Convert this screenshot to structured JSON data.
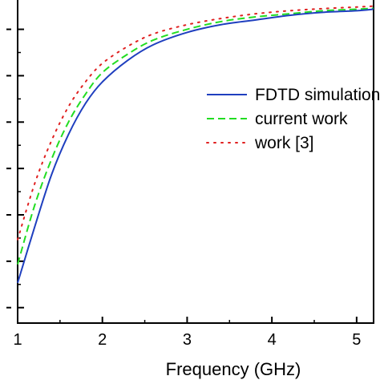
{
  "chart_data": {
    "type": "line",
    "title": "",
    "xlabel": "Frequency (GHz)",
    "ylabel": "",
    "xlim": [
      1,
      5.2
    ],
    "ylim": [
      -0.05,
      1.0
    ],
    "grid": false,
    "legend_position": "right",
    "x_ticks": [
      1,
      2,
      3,
      4,
      5
    ],
    "x_tick_labels": [
      "1",
      "2",
      "3",
      "4",
      "5"
    ],
    "y_ticks": [
      0.0,
      0.15,
      0.3,
      0.45,
      0.6,
      0.75,
      0.9
    ],
    "series": [
      {
        "name": "FDTD simulation",
        "color": "#1f3fbf",
        "line_style": "solid",
        "x": [
          1.0,
          1.2,
          1.4,
          1.6,
          1.8,
          2.0,
          2.3,
          2.6,
          3.0,
          3.4,
          3.8,
          4.2,
          4.6,
          5.0,
          5.2
        ],
        "y": [
          0.08,
          0.26,
          0.43,
          0.56,
          0.66,
          0.73,
          0.8,
          0.85,
          0.89,
          0.915,
          0.93,
          0.945,
          0.955,
          0.96,
          0.965
        ]
      },
      {
        "name": "current work",
        "color": "#22dd22",
        "line_style": "dashed",
        "x": [
          1.0,
          1.2,
          1.4,
          1.6,
          1.8,
          2.0,
          2.3,
          2.6,
          3.0,
          3.4,
          3.8,
          4.2,
          4.6,
          5.0,
          5.2
        ],
        "y": [
          0.14,
          0.33,
          0.48,
          0.6,
          0.69,
          0.76,
          0.82,
          0.865,
          0.9,
          0.925,
          0.94,
          0.95,
          0.96,
          0.965,
          0.968
        ]
      },
      {
        "name": "work [3]",
        "color": "#e02020",
        "line_style": "dotted",
        "x": [
          1.0,
          1.2,
          1.4,
          1.6,
          1.8,
          2.0,
          2.3,
          2.6,
          3.0,
          3.4,
          3.8,
          4.2,
          4.6,
          5.0,
          5.2
        ],
        "y": [
          0.22,
          0.4,
          0.54,
          0.65,
          0.73,
          0.79,
          0.845,
          0.885,
          0.915,
          0.935,
          0.95,
          0.96,
          0.967,
          0.972,
          0.975
        ]
      }
    ]
  }
}
